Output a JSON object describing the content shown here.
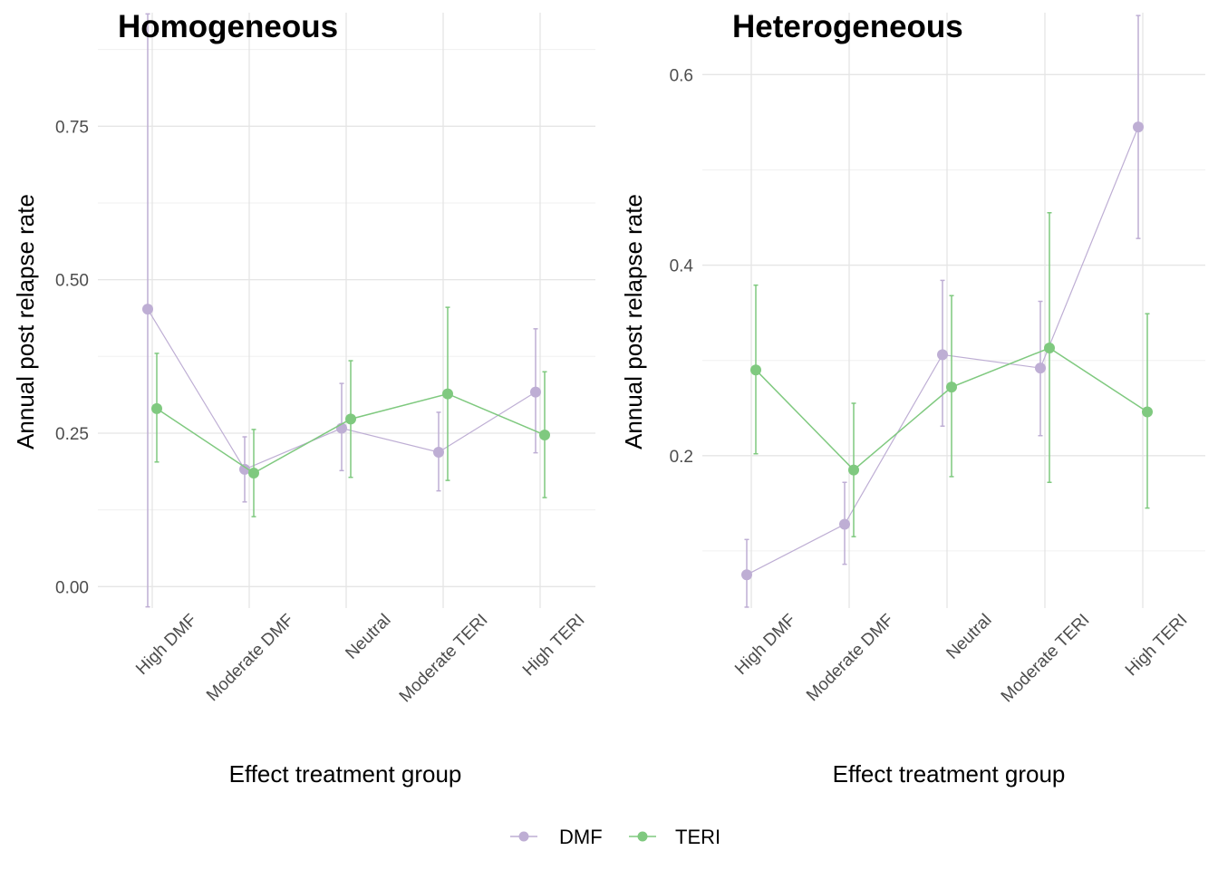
{
  "legend": {
    "position": "bottom",
    "items": [
      {
        "label": "DMF",
        "color": "#BEAED4"
      },
      {
        "label": "TERI",
        "color": "#7FC97F"
      }
    ]
  },
  "chart_data": [
    {
      "type": "line",
      "title": "Homogeneous",
      "xlabel": "Effect treatment group",
      "ylabel": "Annual post relapse rate",
      "categories": [
        "High DMF",
        "Moderate DMF",
        "Neutral",
        "Moderate TERI",
        "High TERI"
      ],
      "ylim": [
        -0.035,
        0.935
      ],
      "yticks": [
        0.0,
        0.25,
        0.5,
        0.75
      ],
      "ytick_labels": [
        "0.00",
        "0.25",
        "0.50",
        "0.75"
      ],
      "grid": true,
      "series": [
        {
          "name": "DMF",
          "color": "#BEAED4",
          "values": [
            0.452,
            0.191,
            0.258,
            0.219,
            0.317
          ],
          "lower": [
            -0.033,
            0.138,
            0.189,
            0.156,
            0.218
          ],
          "upper": [
            0.933,
            0.244,
            0.331,
            0.284,
            0.42
          ]
        },
        {
          "name": "TERI",
          "color": "#7FC97F",
          "values": [
            0.29,
            0.185,
            0.273,
            0.314,
            0.247
          ],
          "lower": [
            0.203,
            0.114,
            0.178,
            0.173,
            0.145
          ],
          "upper": [
            0.38,
            0.256,
            0.368,
            0.455,
            0.35
          ]
        }
      ]
    },
    {
      "type": "line",
      "title": "Heterogeneous",
      "xlabel": "Effect treatment group",
      "ylabel": "Annual post relapse rate",
      "categories": [
        "High DMF",
        "Moderate DMF",
        "Neutral",
        "Moderate TERI",
        "High TERI"
      ],
      "ylim": [
        0.04,
        0.665
      ],
      "yticks": [
        0.2,
        0.4,
        0.6
      ],
      "ytick_labels": [
        "0.2",
        "0.4",
        "0.6"
      ],
      "grid": true,
      "series": [
        {
          "name": "DMF",
          "color": "#BEAED4",
          "values": [
            0.075,
            0.128,
            0.306,
            0.292,
            0.545
          ],
          "lower": [
            0.041,
            0.086,
            0.231,
            0.221,
            0.428
          ],
          "upper": [
            0.112,
            0.172,
            0.384,
            0.362,
            0.662
          ]
        },
        {
          "name": "TERI",
          "color": "#7FC97F",
          "values": [
            0.29,
            0.185,
            0.272,
            0.313,
            0.246
          ],
          "lower": [
            0.202,
            0.115,
            0.178,
            0.172,
            0.145
          ],
          "upper": [
            0.379,
            0.255,
            0.368,
            0.455,
            0.349
          ]
        }
      ]
    }
  ]
}
